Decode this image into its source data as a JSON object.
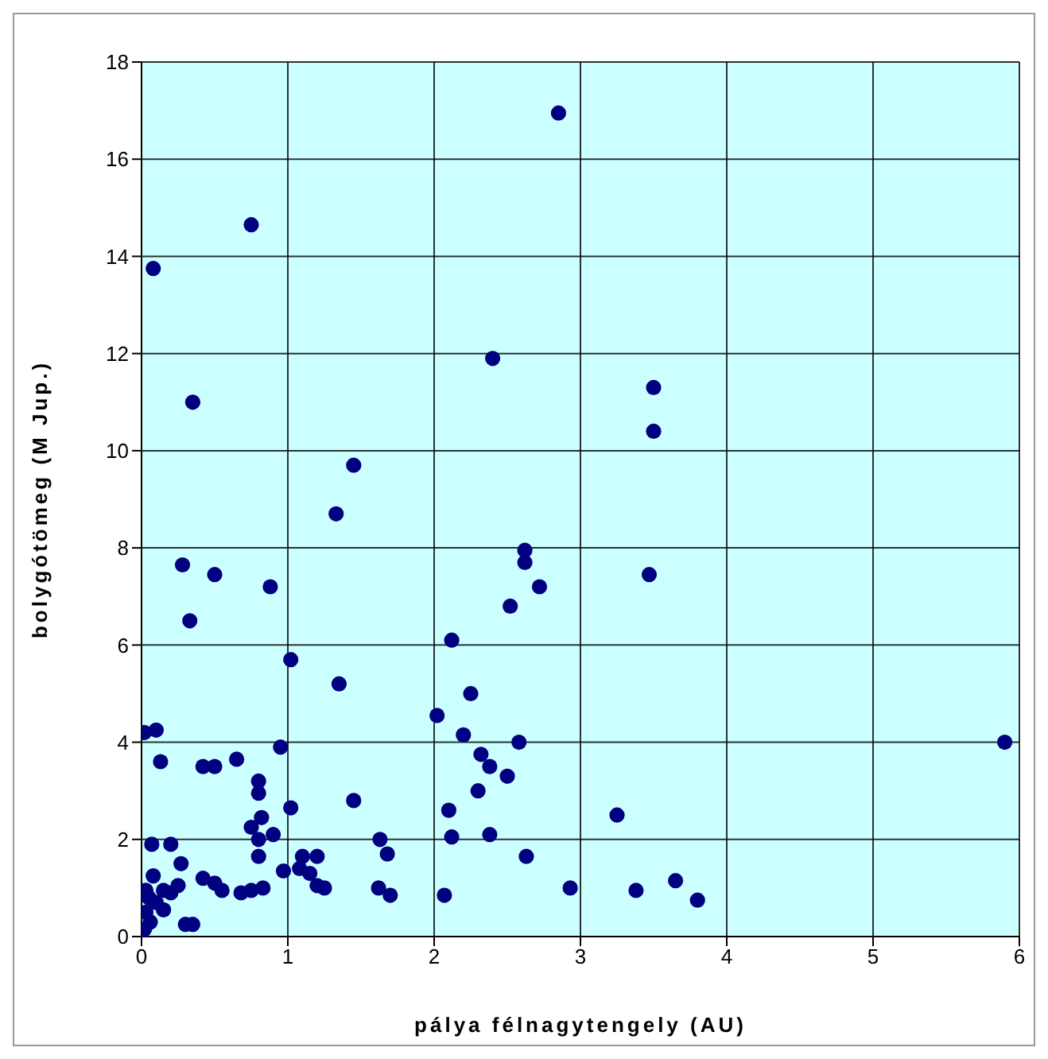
{
  "chart_data": {
    "type": "scatter",
    "xlabel": "pálya félnagytengely (AU)",
    "ylabel": "bolygótömeg (M Jup.)",
    "color": "#000080",
    "marker": "circle",
    "grid": true,
    "xlim": [
      0,
      6
    ],
    "xticks": [
      0,
      1,
      2,
      3,
      4,
      5,
      6
    ],
    "ylim": [
      0,
      18
    ],
    "yticks": [
      0,
      2,
      4,
      6,
      8,
      10,
      12,
      14,
      16,
      18
    ],
    "x": [
      0.75,
      0.08,
      2.85,
      0.35,
      2.4,
      3.5,
      3.5,
      1.45,
      1.33,
      0.28,
      0.5,
      0.88,
      2.62,
      2.62,
      2.72,
      3.47,
      0.33,
      2.12,
      2.52,
      1.02,
      1.35,
      2.25,
      2.02,
      2.2,
      2.58,
      5.9,
      0.02,
      0.1,
      0.13,
      0.42,
      0.5,
      0.65,
      0.95,
      2.32,
      2.38,
      2.5,
      2.3,
      0.8,
      0.8,
      1.45,
      1.02,
      3.25,
      2.1,
      0.75,
      0.82,
      0.9,
      0.8,
      0.07,
      0.2,
      2.38,
      2.12,
      1.63,
      0.27,
      0.8,
      1.1,
      1.2,
      1.08,
      1.15,
      1.68,
      2.63,
      0.97,
      0.42,
      0.5,
      0.55,
      0.75,
      0.83,
      1.2,
      1.25,
      1.62,
      1.7,
      2.07,
      2.93,
      3.38,
      3.65,
      3.8,
      0.08,
      0.15,
      0.05,
      0.03,
      0.06,
      0.02,
      0.1,
      0.3,
      0.35,
      0.2,
      0.15,
      0.03,
      0.25,
      0.68
    ],
    "values": [
      14.65,
      13.75,
      16.95,
      11.0,
      11.9,
      11.3,
      10.4,
      9.7,
      8.7,
      7.65,
      7.45,
      7.2,
      7.95,
      7.7,
      7.2,
      7.45,
      6.5,
      6.1,
      6.8,
      5.7,
      5.2,
      5.0,
      4.55,
      4.15,
      4.0,
      4.0,
      4.2,
      4.25,
      3.6,
      3.5,
      3.5,
      3.65,
      3.9,
      3.75,
      3.5,
      3.3,
      3.0,
      3.2,
      2.95,
      2.8,
      2.65,
      2.5,
      2.6,
      2.25,
      2.45,
      2.1,
      2.0,
      1.9,
      1.9,
      2.1,
      2.05,
      2.0,
      1.5,
      1.65,
      1.65,
      1.65,
      1.4,
      1.3,
      1.7,
      1.65,
      1.35,
      1.2,
      1.1,
      0.95,
      0.95,
      1.0,
      1.05,
      1.0,
      1.0,
      0.85,
      0.85,
      1.0,
      0.95,
      1.15,
      0.75,
      1.25,
      0.95,
      0.8,
      0.5,
      0.3,
      0.15,
      0.7,
      0.25,
      0.25,
      0.9,
      0.55,
      0.95,
      1.05,
      0.9
    ]
  }
}
